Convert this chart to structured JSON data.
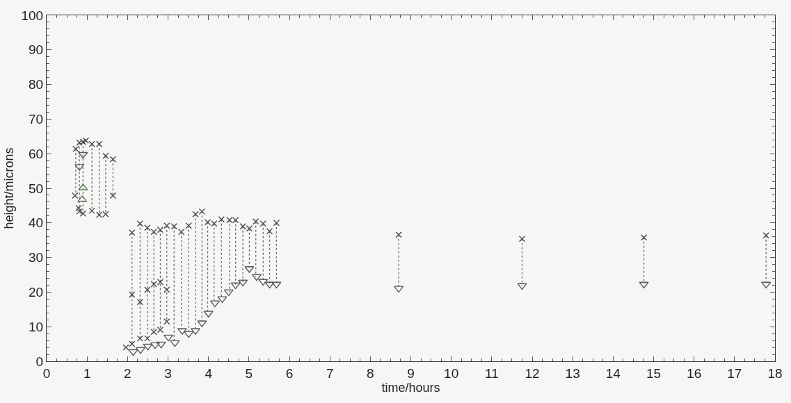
{
  "chart_data": {
    "type": "scatter",
    "xlabel": "time/hours",
    "ylabel": "height/microns",
    "xlim": [
      0,
      18
    ],
    "xticks": [
      0,
      1,
      2,
      3,
      4,
      5,
      6,
      7,
      8,
      9,
      10,
      11,
      12,
      13,
      14,
      15,
      16,
      17,
      18
    ],
    "ylim": [
      0,
      100
    ],
    "yticks": [
      0,
      10,
      20,
      30,
      40,
      50,
      60,
      70,
      80,
      90,
      100
    ],
    "series": [
      {
        "type": "line",
        "line_style": "dotted",
        "marker": "none",
        "color": "#6a6a6a",
        "x": [
          0.72,
          0.72,
          null,
          0.81,
          0.81,
          null,
          0.9,
          0.9,
          null,
          1.12,
          1.12,
          null,
          1.3,
          1.3,
          null,
          1.46,
          1.46,
          null,
          1.64,
          1.64,
          null,
          2.11,
          2.11,
          null,
          2.31,
          2.31,
          null,
          2.49,
          2.49,
          null,
          2.65,
          2.65,
          null,
          2.81,
          2.81,
          null,
          2.97,
          2.97,
          null,
          3.15,
          3.15,
          null,
          3.33,
          3.33,
          null,
          3.51,
          3.51,
          null,
          3.68,
          3.68,
          null,
          3.84,
          3.84,
          null,
          3.98,
          3.98,
          null,
          4.14,
          4.14,
          null,
          4.32,
          4.32,
          null,
          4.52,
          4.52,
          null,
          4.67,
          4.67,
          null,
          4.85,
          4.85,
          null,
          5.01,
          5.01,
          null,
          5.17,
          5.17,
          null,
          5.35,
          5.35,
          null,
          5.51,
          5.51,
          null,
          5.68,
          5.68,
          null,
          8.7,
          8.7,
          null,
          11.75,
          11.75,
          null,
          14.76,
          14.76,
          null,
          17.78,
          17.78
        ],
        "values": [
          61.4,
          47.9,
          null,
          63.2,
          43.3,
          null,
          63.4,
          42.7,
          null,
          62.8,
          43.5,
          null,
          62.8,
          42.3,
          null,
          59.4,
          42.5,
          null,
          58.4,
          47.9,
          null,
          37.2,
          5.0,
          null,
          39.8,
          6.6,
          null,
          38.6,
          6.6,
          null,
          37.4,
          8.5,
          null,
          38.0,
          9.1,
          null,
          39.2,
          11.5,
          null,
          39.0,
          5.4,
          null,
          37.4,
          8.9,
          null,
          39.2,
          8.0,
          null,
          42.5,
          8.9,
          null,
          43.3,
          11.1,
          null,
          40.2,
          13.9,
          null,
          39.8,
          16.9,
          null,
          41.0,
          18.1,
          null,
          40.8,
          20.1,
          null,
          40.8,
          22.1,
          null,
          39.0,
          22.9,
          null,
          38.4,
          26.8,
          null,
          40.4,
          24.5,
          null,
          39.8,
          23.1,
          null,
          37.6,
          22.3,
          null,
          40.0,
          22.3,
          null,
          36.6,
          21.1,
          null,
          35.4,
          21.9,
          null,
          35.8,
          22.3,
          null,
          36.4,
          22.3
        ]
      },
      {
        "marker": "cross",
        "color": "#4a4a4a",
        "x": [
          0.72,
          0.81,
          0.9,
          0.97,
          1.12,
          1.3,
          1.46,
          1.64,
          2.11,
          2.31,
          2.49,
          2.65,
          2.81,
          2.97,
          3.15,
          3.33,
          3.51,
          3.68,
          3.84,
          3.98,
          4.14,
          4.32,
          4.52,
          4.67,
          4.85,
          5.01,
          5.17,
          5.35,
          5.51,
          5.68,
          8.7,
          11.75,
          14.76,
          17.78
        ],
        "values": [
          61.4,
          63.2,
          63.4,
          63.8,
          62.8,
          62.8,
          59.4,
          58.4,
          37.2,
          39.8,
          38.6,
          37.4,
          38.0,
          39.2,
          39.0,
          37.4,
          39.2,
          42.5,
          43.3,
          40.2,
          39.8,
          41.0,
          40.8,
          40.8,
          39.0,
          38.4,
          40.4,
          39.8,
          37.6,
          40.0,
          36.6,
          35.4,
          35.8,
          36.4
        ]
      },
      {
        "marker": "cross",
        "color": "#4a4a4a",
        "x": [
          0.7,
          0.79,
          0.81,
          0.9,
          1.12,
          1.3,
          1.46,
          1.64,
          2.11,
          2.31,
          2.49,
          2.65,
          2.81,
          2.97,
          1.96,
          2.11,
          2.31,
          2.49,
          2.65,
          2.81,
          2.97
        ],
        "values": [
          47.9,
          44.3,
          43.3,
          42.7,
          43.5,
          42.3,
          42.5,
          47.9,
          19.3,
          17.1,
          20.7,
          22.3,
          22.9,
          20.7,
          4.0,
          5.0,
          6.6,
          6.6,
          8.5,
          9.1,
          11.5
        ]
      },
      {
        "marker": "triangle-down",
        "color": "#5a5a5a",
        "x": [
          0.9,
          0.81,
          2.14,
          2.32,
          2.5,
          2.68,
          2.83,
          3.01,
          3.17,
          3.35,
          3.51,
          3.68,
          3.84,
          4.0,
          4.16,
          4.34,
          4.5,
          4.67,
          4.85,
          5.01,
          5.19,
          5.35,
          5.51,
          5.68,
          8.7,
          11.75,
          14.76,
          17.78
        ],
        "values": [
          59.8,
          56.3,
          2.8,
          3.4,
          4.4,
          4.8,
          5.0,
          7.0,
          5.4,
          8.9,
          8.0,
          8.9,
          11.1,
          13.9,
          16.9,
          18.1,
          20.1,
          22.1,
          22.9,
          26.8,
          24.5,
          23.1,
          22.3,
          22.3,
          21.1,
          21.9,
          22.3,
          22.3
        ]
      },
      {
        "marker": "triangle",
        "color": "#5a7a5a",
        "x": [
          0.9,
          0.88
        ],
        "values": [
          50.1,
          46.7
        ]
      }
    ]
  }
}
